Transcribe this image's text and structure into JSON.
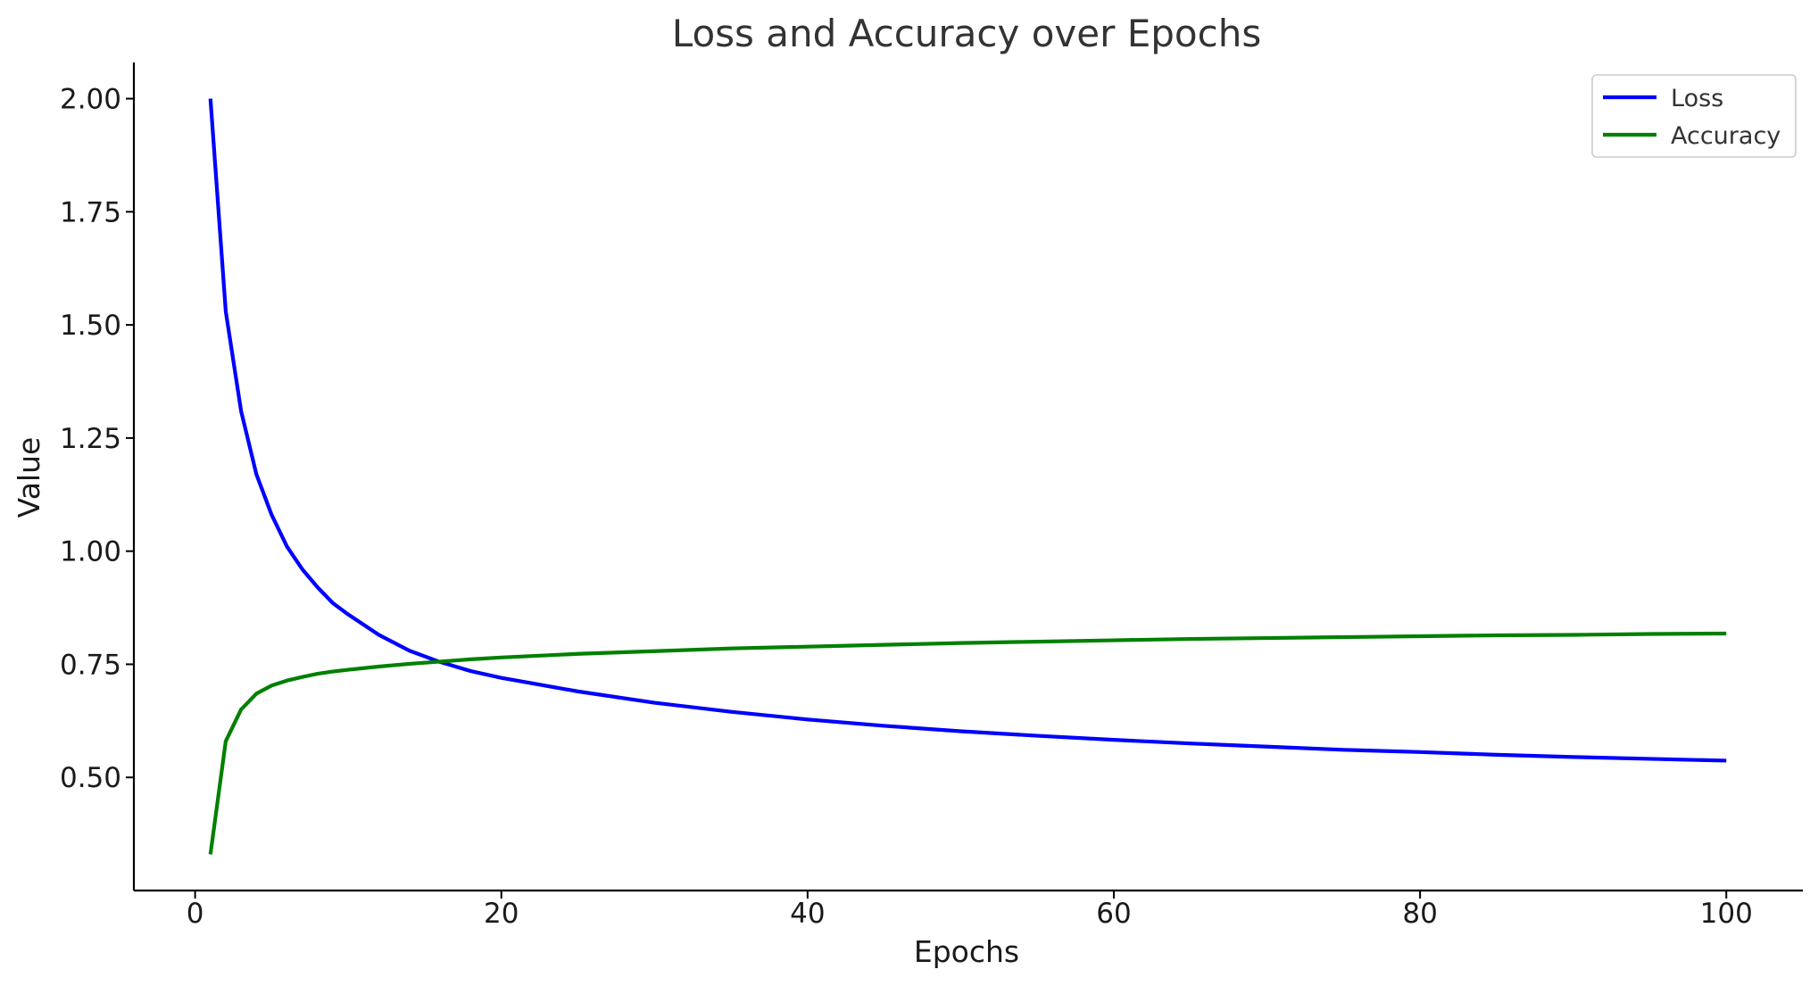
{
  "chart_data": {
    "type": "line",
    "title": "Loss and Accuracy over Epochs",
    "xlabel": "Epochs",
    "ylabel": "Value",
    "xlim": [
      -4,
      105
    ],
    "ylim": [
      0.25,
      2.08
    ],
    "xticks": [
      0,
      20,
      40,
      60,
      80,
      100
    ],
    "xtick_labels": [
      "0",
      "20",
      "40",
      "60",
      "80",
      "100"
    ],
    "yticks": [
      0.5,
      0.75,
      1.0,
      1.25,
      1.5,
      1.75,
      2.0
    ],
    "ytick_labels": [
      "0.50",
      "0.75",
      "1.00",
      "1.25",
      "1.50",
      "1.75",
      "2.00"
    ],
    "grid": false,
    "legend_position": "top-right",
    "x": [
      1,
      2,
      3,
      4,
      5,
      6,
      7,
      8,
      9,
      10,
      12,
      14,
      16,
      18,
      20,
      25,
      30,
      35,
      40,
      45,
      50,
      55,
      60,
      65,
      70,
      75,
      80,
      85,
      90,
      95,
      100
    ],
    "series": [
      {
        "name": "Loss",
        "color": "#0000ff",
        "values": [
          2.0,
          1.53,
          1.31,
          1.17,
          1.08,
          1.01,
          0.96,
          0.92,
          0.885,
          0.86,
          0.815,
          0.78,
          0.755,
          0.735,
          0.72,
          0.69,
          0.665,
          0.645,
          0.628,
          0.614,
          0.602,
          0.592,
          0.583,
          0.575,
          0.568,
          0.561,
          0.556,
          0.55,
          0.545,
          0.541,
          0.537
        ]
      },
      {
        "name": "Accuracy",
        "color": "#008000",
        "values": [
          0.33,
          0.58,
          0.65,
          0.685,
          0.703,
          0.714,
          0.722,
          0.729,
          0.734,
          0.738,
          0.745,
          0.751,
          0.756,
          0.761,
          0.765,
          0.773,
          0.779,
          0.785,
          0.789,
          0.793,
          0.797,
          0.8,
          0.803,
          0.806,
          0.808,
          0.81,
          0.812,
          0.814,
          0.815,
          0.817,
          0.818
        ]
      }
    ]
  }
}
